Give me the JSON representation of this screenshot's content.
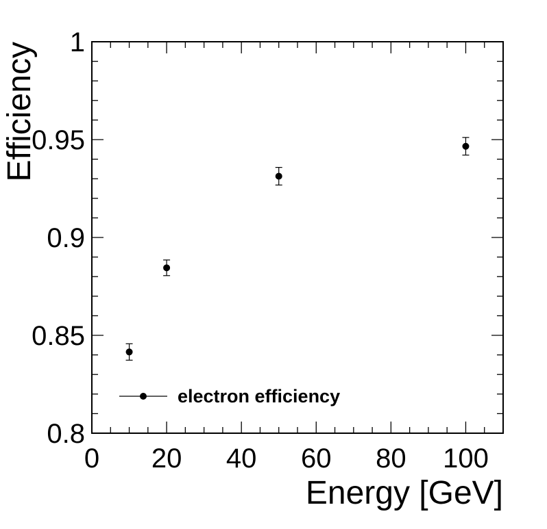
{
  "chart_data": {
    "type": "scatter",
    "xlabel": "Energy [GeV]",
    "ylabel": "Efficiency",
    "xlim": [
      0,
      110
    ],
    "ylim": [
      0.8,
      1.0
    ],
    "x_ticks": [
      0,
      20,
      40,
      60,
      80,
      100
    ],
    "x_tick_labels": [
      "0",
      "20",
      "40",
      "60",
      "80",
      "100"
    ],
    "y_ticks": [
      0.8,
      0.85,
      0.9,
      0.95,
      1.0
    ],
    "y_tick_labels": [
      "0.8",
      "0.85",
      "0.9",
      "0.95",
      "1"
    ],
    "grid": false,
    "legend_position": "bottom-left",
    "series": [
      {
        "name": "electron efficiency",
        "x": [
          10,
          20,
          50,
          100
        ],
        "y": [
          0.8415,
          0.8845,
          0.9313,
          0.9466
        ],
        "y_err": [
          0.0042,
          0.004,
          0.0045,
          0.0045
        ],
        "color": "#000000"
      }
    ]
  }
}
